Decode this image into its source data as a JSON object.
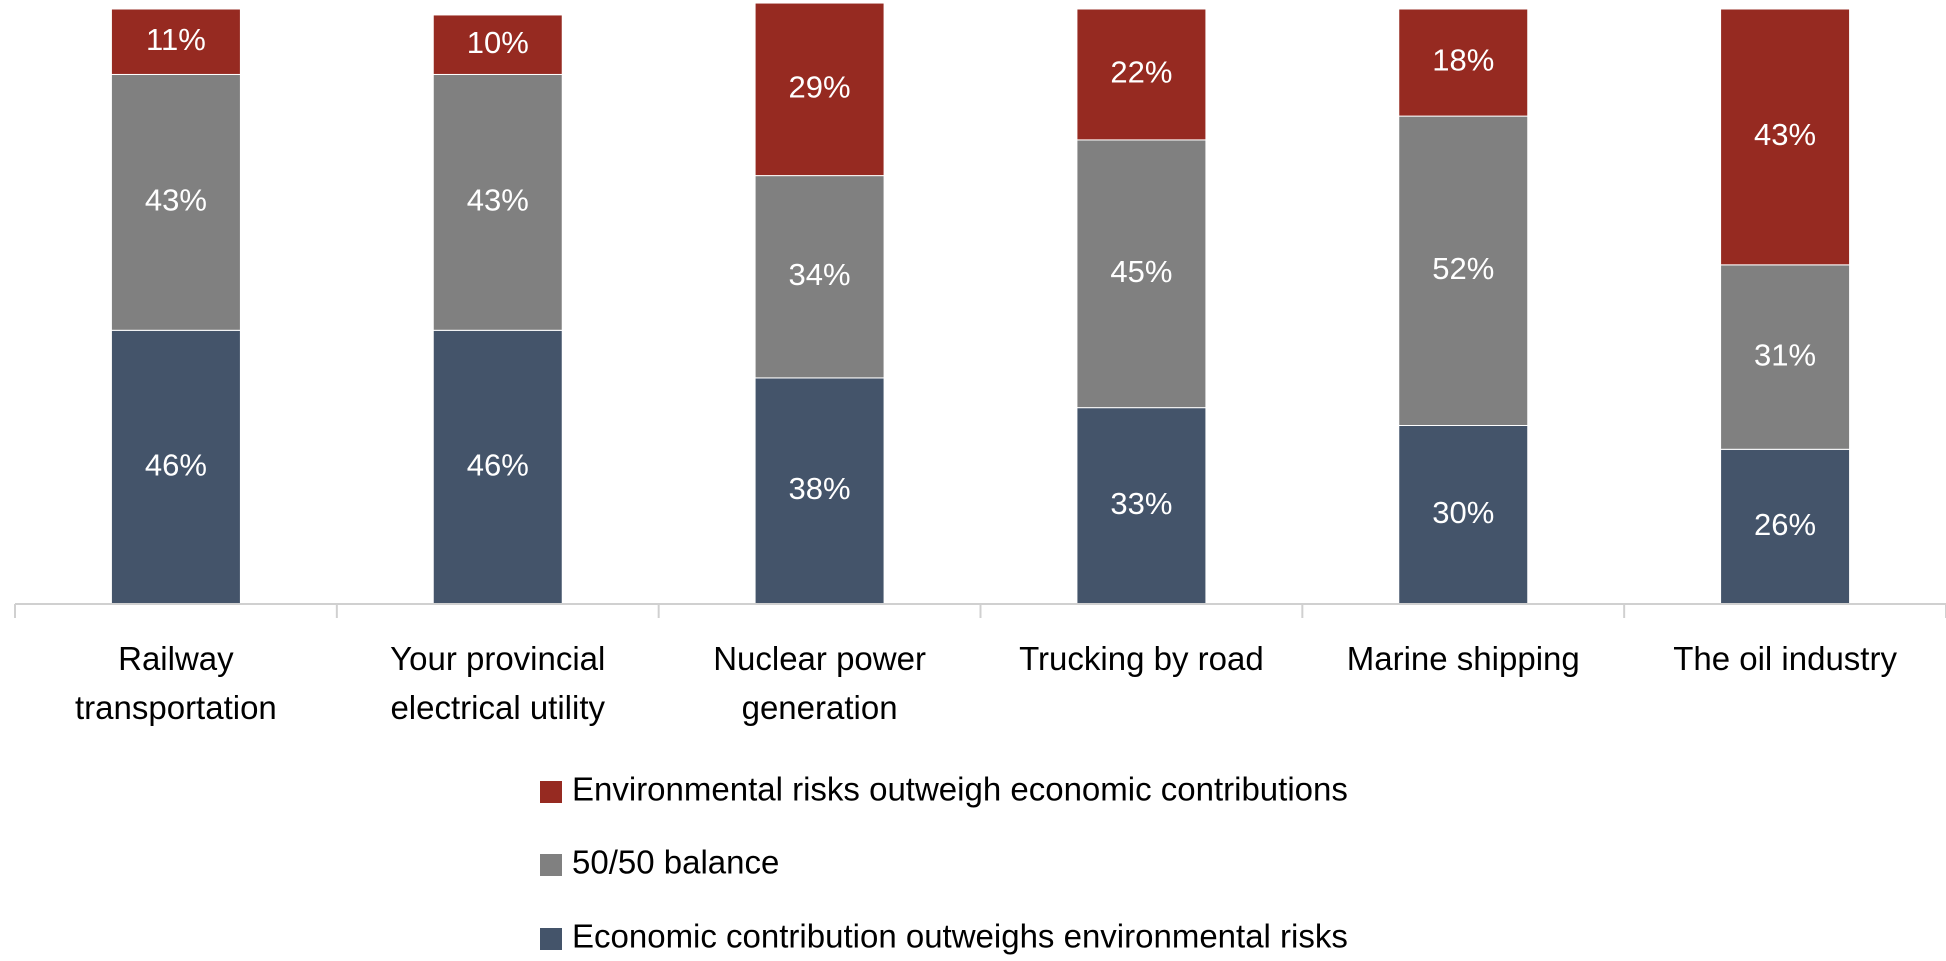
{
  "chart_data": {
    "type": "stacked_bar",
    "categories": [
      "Railway transportation",
      "Your provincial electrical utility",
      "Nuclear power generation",
      "Trucking by road",
      "Marine shipping",
      "The oil industry"
    ],
    "series": [
      {
        "name": "Environmental risks outweigh economic contributions",
        "color": "#962a21",
        "values": [
          11,
          10,
          29,
          22,
          18,
          43
        ],
        "value_labels": [
          "11%",
          "10%",
          "29%",
          "22%",
          "18%",
          "43%"
        ]
      },
      {
        "name": "50/50 balance",
        "color": "#808080",
        "values": [
          43,
          43,
          34,
          45,
          52,
          31
        ],
        "value_labels": [
          "43%",
          "43%",
          "34%",
          "45%",
          "52%",
          "31%"
        ]
      },
      {
        "name": "Economic contribution outweighs environmental risks",
        "color": "#44546a",
        "values": [
          46,
          46,
          38,
          33,
          30,
          26
        ],
        "value_labels": [
          "46%",
          "46%",
          "38%",
          "33%",
          "30%",
          "26%"
        ]
      }
    ],
    "ylim": [
      0,
      100
    ]
  }
}
